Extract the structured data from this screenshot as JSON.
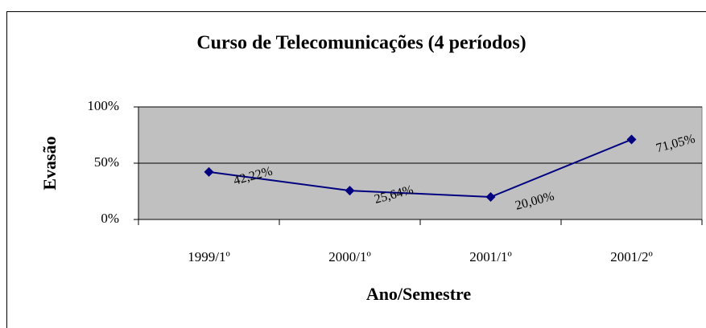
{
  "chart_data": {
    "type": "line",
    "title": "Curso de Telecomunicações (4 períodos)",
    "x_label": "Ano/Semestre",
    "y_label": "Evasão",
    "categories": [
      "1999/1º",
      "2000/1º",
      "2001/1º",
      "2001/2º"
    ],
    "series": [
      {
        "name": "Evasão",
        "color": "#000080",
        "values": [
          42.22,
          25.64,
          20.0,
          71.05
        ],
        "value_labels": [
          "42,22%",
          "25,64%",
          "20,00%",
          "71,05%"
        ]
      }
    ],
    "ylim": [
      0,
      100
    ],
    "yticks": [
      {
        "value": 0,
        "label": "0%"
      },
      {
        "value": 50,
        "label": "50%"
      },
      {
        "value": 100,
        "label": "100%"
      }
    ],
    "grid": true,
    "plot_background": "#c0c0c0"
  }
}
